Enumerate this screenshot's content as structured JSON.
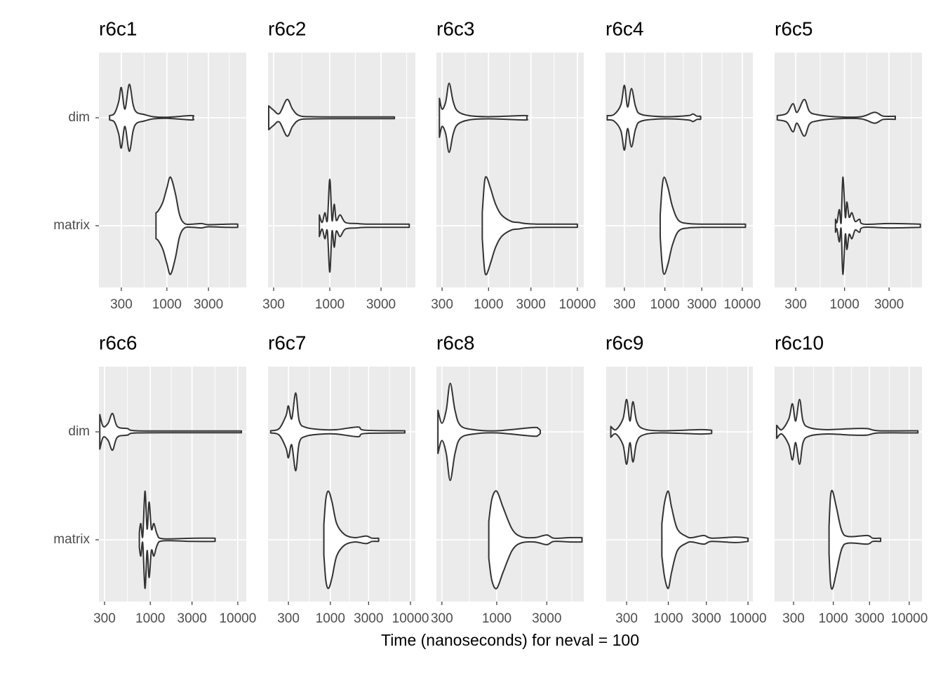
{
  "xlabel": "Time (nanoseconds) for neval = 100",
  "categories": [
    "dim",
    "matrix"
  ],
  "chart_data": [
    {
      "type": "violin",
      "title": "r6c1",
      "log_x": true,
      "grid": true,
      "fill": "#ffffff",
      "stroke": "#333333",
      "xlim": [
        166,
        8150
      ],
      "xticks": [
        300,
        1000,
        3000
      ],
      "violins": [
        {
          "x": [
            220,
            250,
            280,
            300,
            330,
            370,
            410,
            450,
            550,
            700,
            1000,
            1900,
            2000
          ],
          "density": [
            0.02,
            0.04,
            0.15,
            0.28,
            0.08,
            0.31,
            0.12,
            0.05,
            0.03,
            0.01,
            0.005,
            0.02,
            0.01
          ]
        },
        {
          "x": [
            750,
            800,
            900,
            1000,
            1100,
            1250,
            1400,
            1600,
            2000,
            2500,
            3000,
            5000,
            6500
          ],
          "density": [
            0.12,
            0.14,
            0.22,
            0.35,
            0.45,
            0.3,
            0.1,
            0.02,
            0.015,
            0.02,
            0.01,
            0.015,
            0.015
          ]
        }
      ]
    },
    {
      "type": "violin",
      "title": "r6c2",
      "log_x": true,
      "grid": true,
      "fill": "#ffffff",
      "stroke": "#333333",
      "xlim": [
        266,
        6270
      ],
      "xticks": [
        300,
        1000,
        3000
      ],
      "violins": [
        {
          "x": [
            270,
            300,
            340,
            400,
            450,
            520,
            700,
            1500,
            4000
          ],
          "density": [
            0.11,
            0.07,
            0.04,
            0.17,
            0.08,
            0.02,
            0.01,
            0.008,
            0.008
          ]
        },
        {
          "x": [
            800,
            850,
            900,
            950,
            1000,
            1050,
            1100,
            1150,
            1250,
            1400,
            1800,
            2200,
            4000,
            5500
          ],
          "density": [
            0.1,
            0.03,
            0.12,
            0.05,
            0.43,
            0.05,
            0.2,
            0.05,
            0.1,
            0.03,
            0.02,
            0.015,
            0.015,
            0.015
          ]
        }
      ]
    },
    {
      "type": "violin",
      "title": "r6c3",
      "log_x": true,
      "grid": true,
      "fill": "#ffffff",
      "stroke": "#333333",
      "xlim": [
        259,
        11800
      ],
      "xticks": [
        300,
        1000,
        3000,
        10000
      ],
      "violins": [
        {
          "x": [
            280,
            300,
            330,
            360,
            400,
            450,
            600,
            1000,
            2500,
            2700
          ],
          "density": [
            0.18,
            0.08,
            0.15,
            0.32,
            0.15,
            0.06,
            0.02,
            0.01,
            0.02,
            0.015
          ]
        },
        {
          "x": [
            850,
            900,
            950,
            1050,
            1200,
            1400,
            1800,
            2200,
            2600,
            3500,
            7000,
            10000
          ],
          "density": [
            0.12,
            0.4,
            0.45,
            0.35,
            0.2,
            0.1,
            0.04,
            0.03,
            0.02,
            0.015,
            0.015,
            0.015
          ]
        }
      ]
    },
    {
      "type": "violin",
      "title": "r6c4",
      "log_x": true,
      "grid": true,
      "fill": "#ffffff",
      "stroke": "#333333",
      "xlim": [
        171,
        13700
      ],
      "xticks": [
        300,
        1000,
        3000,
        10000
      ],
      "violins": [
        {
          "x": [
            180,
            220,
            270,
            300,
            330,
            370,
            420,
            500,
            1000,
            2000,
            2300,
            2600,
            2900
          ],
          "density": [
            0.02,
            0.03,
            0.12,
            0.3,
            0.1,
            0.27,
            0.1,
            0.03,
            0.01,
            0.02,
            0.035,
            0.015,
            0.015
          ]
        },
        {
          "x": [
            870,
            920,
            980,
            1100,
            1250,
            1500,
            2000,
            3000,
            7000,
            11000
          ],
          "density": [
            0.1,
            0.35,
            0.45,
            0.35,
            0.18,
            0.05,
            0.02,
            0.015,
            0.015,
            0.015
          ]
        }
      ]
    },
    {
      "type": "violin",
      "title": "r6c5",
      "log_x": true,
      "grid": true,
      "fill": "#ffffff",
      "stroke": "#333333",
      "xlim": [
        178,
        6760
      ],
      "xticks": [
        300,
        1000,
        3000
      ],
      "violins": [
        {
          "x": [
            190,
            240,
            280,
            310,
            370,
            420,
            500,
            800,
            1500,
            2100,
            2600,
            3500
          ],
          "density": [
            0.02,
            0.04,
            0.13,
            0.05,
            0.17,
            0.06,
            0.03,
            0.01,
            0.01,
            0.05,
            0.015,
            0.015
          ]
        },
        {
          "x": [
            800,
            830,
            880,
            920,
            960,
            1020,
            1060,
            1120,
            1200,
            1300,
            1450,
            1600,
            3000,
            6500
          ],
          "density": [
            0.06,
            0.03,
            0.15,
            0.03,
            0.45,
            0.08,
            0.22,
            0.08,
            0.12,
            0.04,
            0.06,
            0.015,
            0.02,
            0.015
          ]
        }
      ]
    },
    {
      "type": "violin",
      "title": "r6c6",
      "log_x": true,
      "grid": true,
      "fill": "#ffffff",
      "stroke": "#333333",
      "xlim": [
        259,
        12500
      ],
      "xticks": [
        300,
        1000,
        3000,
        10000
      ],
      "violins": [
        {
          "x": [
            265,
            290,
            330,
            370,
            420,
            550,
            700,
            3000,
            11000
          ],
          "density": [
            0.16,
            0.05,
            0.08,
            0.17,
            0.05,
            0.03,
            0.01,
            0.008,
            0.008
          ]
        },
        {
          "x": [
            750,
            780,
            820,
            870,
            920,
            970,
            1030,
            1100,
            1200,
            1400,
            3200,
            5500
          ],
          "density": [
            0.07,
            0.15,
            0.03,
            0.45,
            0.1,
            0.35,
            0.1,
            0.15,
            0.05,
            0.01,
            0.015,
            0.015
          ]
        }
      ]
    },
    {
      "type": "violin",
      "title": "r6c7",
      "log_x": true,
      "grid": true,
      "fill": "#ffffff",
      "stroke": "#333333",
      "xlim": [
        167,
        11500
      ],
      "xticks": [
        300,
        1000,
        3000,
        10000
      ],
      "violins": [
        {
          "x": [
            180,
            230,
            280,
            300,
            330,
            370,
            410,
            500,
            800,
            1200,
            2200,
            2700,
            8500
          ],
          "density": [
            0.01,
            0.03,
            0.15,
            0.24,
            0.12,
            0.36,
            0.1,
            0.04,
            0.02,
            0.02,
            0.045,
            0.015,
            0.01
          ]
        },
        {
          "x": [
            830,
            880,
            950,
            1050,
            1200,
            1500,
            2000,
            2800,
            3300,
            4000
          ],
          "density": [
            0.14,
            0.38,
            0.45,
            0.35,
            0.15,
            0.05,
            0.02,
            0.035,
            0.015,
            0.015
          ]
        }
      ]
    },
    {
      "type": "violin",
      "title": "r6c8",
      "log_x": true,
      "grid": true,
      "fill": "#ffffff",
      "stroke": "#333333",
      "xlim": [
        266,
        6760
      ],
      "xticks": [
        300,
        1000,
        3000
      ],
      "violins": [
        {
          "x": [
            275,
            300,
            330,
            360,
            400,
            450,
            600,
            1000,
            2200,
            2500,
            2600
          ],
          "density": [
            0.2,
            0.08,
            0.2,
            0.45,
            0.2,
            0.06,
            0.02,
            0.01,
            0.04,
            0.03,
            0.015
          ]
        },
        {
          "x": [
            840,
            900,
            1000,
            1150,
            1400,
            1700,
            2300,
            3000,
            3500,
            5000,
            6500
          ],
          "density": [
            0.17,
            0.38,
            0.45,
            0.3,
            0.1,
            0.03,
            0.02,
            0.045,
            0.015,
            0.02,
            0.02
          ]
        }
      ]
    },
    {
      "type": "violin",
      "title": "r6c9",
      "log_x": true,
      "grid": true,
      "fill": "#ffffff",
      "stroke": "#333333",
      "xlim": [
        163,
        11500
      ],
      "xticks": [
        300,
        1000,
        3000,
        10000
      ],
      "violins": [
        {
          "x": [
            190,
            220,
            270,
            300,
            330,
            360,
            400,
            480,
            800,
            2500,
            3500
          ],
          "density": [
            0.05,
            0.02,
            0.12,
            0.3,
            0.1,
            0.28,
            0.1,
            0.03,
            0.01,
            0.02,
            0.015
          ]
        },
        {
          "x": [
            830,
            900,
            1000,
            1100,
            1300,
            1700,
            2000,
            2800,
            3500,
            7000,
            10000
          ],
          "density": [
            0.15,
            0.35,
            0.45,
            0.3,
            0.1,
            0.03,
            0.02,
            0.04,
            0.015,
            0.025,
            0.015
          ]
        }
      ]
    },
    {
      "type": "violin",
      "title": "r6c10",
      "log_x": true,
      "grid": true,
      "fill": "#ffffff",
      "stroke": "#333333",
      "xlim": [
        169,
        14700
      ],
      "xticks": [
        300,
        1000,
        3000,
        10000
      ],
      "violins": [
        {
          "x": [
            180,
            210,
            260,
            290,
            320,
            360,
            400,
            480,
            800,
            1800,
            2800,
            4000,
            13000
          ],
          "density": [
            0.06,
            0.02,
            0.12,
            0.26,
            0.1,
            0.3,
            0.1,
            0.04,
            0.02,
            0.03,
            0.03,
            0.01,
            0.01
          ]
        },
        {
          "x": [
            880,
            920,
            980,
            1100,
            1300,
            1600,
            2800,
            3300,
            4200
          ],
          "density": [
            0.13,
            0.4,
            0.45,
            0.3,
            0.08,
            0.03,
            0.04,
            0.015,
            0.015
          ]
        }
      ]
    }
  ]
}
